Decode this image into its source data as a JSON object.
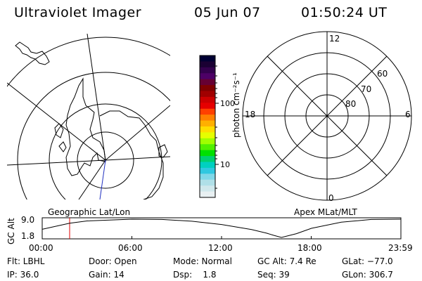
{
  "header": {
    "title": "Ultraviolet Imager",
    "date": "05 Jun 07",
    "time": "01:50:24 UT"
  },
  "geo_panel": {
    "label": "Geographic Lat/Lon"
  },
  "colorbar": {
    "label": "photon cm⁻²s⁻¹",
    "ticks": [
      "100",
      "10"
    ],
    "colors": [
      "#000033",
      "#1a0033",
      "#33004d",
      "#4d0066",
      "#660033",
      "#800000",
      "#a00000",
      "#cc0000",
      "#e60000",
      "#ff4000",
      "#ff8000",
      "#ffb000",
      "#ffdd00",
      "#e6ff00",
      "#a0ff00",
      "#50f000",
      "#00e000",
      "#00d070",
      "#00d0c0",
      "#30c8e0",
      "#80d8e8",
      "#b0e0e8",
      "#d0e8ec",
      "#e8f0f2"
    ]
  },
  "mlt_panel": {
    "label": "Apex MLat/MLT",
    "mlt_labels": [
      "12",
      "18",
      "6",
      "0"
    ],
    "lat_labels": [
      "60",
      "70",
      "80"
    ]
  },
  "altitude_plot": {
    "ylabel": "GC Alt",
    "y_ticks": [
      "9.0",
      "1.8"
    ],
    "x_ticks": [
      "00:00",
      "06:00",
      "12:00",
      "18:00",
      "23:59"
    ],
    "marker_color": "#e00000",
    "line_color": "#000000"
  },
  "status": {
    "row1": {
      "flt": "Flt: LBHL",
      "door": "Door: Open",
      "mode": "Mode: Normal",
      "gc_alt": "GC Alt: 7.4 Re",
      "glat": "GLat: −77.0"
    },
    "row2": {
      "ip": "IP: 36.0",
      "gain": "Gain: 14",
      "dsp": "Dsp:    1.8",
      "seq": "Seq: 39",
      "glon": "GLon: 306.7"
    }
  },
  "chart_data": [
    {
      "type": "line",
      "title": "",
      "xlabel": "",
      "ylabel": "GC Alt",
      "x_ticks": [
        "00:00",
        "06:00",
        "12:00",
        "18:00",
        "23:59"
      ],
      "y_ticks": [
        9.0,
        1.8
      ],
      "series": [
        {
          "x": [
            "00:00",
            "01:50",
            "03:00",
            "06:00",
            "08:00",
            "10:00",
            "12:00",
            "14:00",
            "15:00",
            "15:30",
            "16:00",
            "17:00",
            "18:00",
            "20:00",
            "22:00",
            "23:59"
          ],
          "values": [
            5.0,
            7.4,
            8.3,
            9.0,
            8.9,
            8.2,
            6.9,
            4.9,
            3.5,
            2.6,
            1.8,
            3.3,
            5.4,
            7.8,
            8.9,
            9.0
          ]
        }
      ],
      "marker_time": "01:50"
    }
  ]
}
